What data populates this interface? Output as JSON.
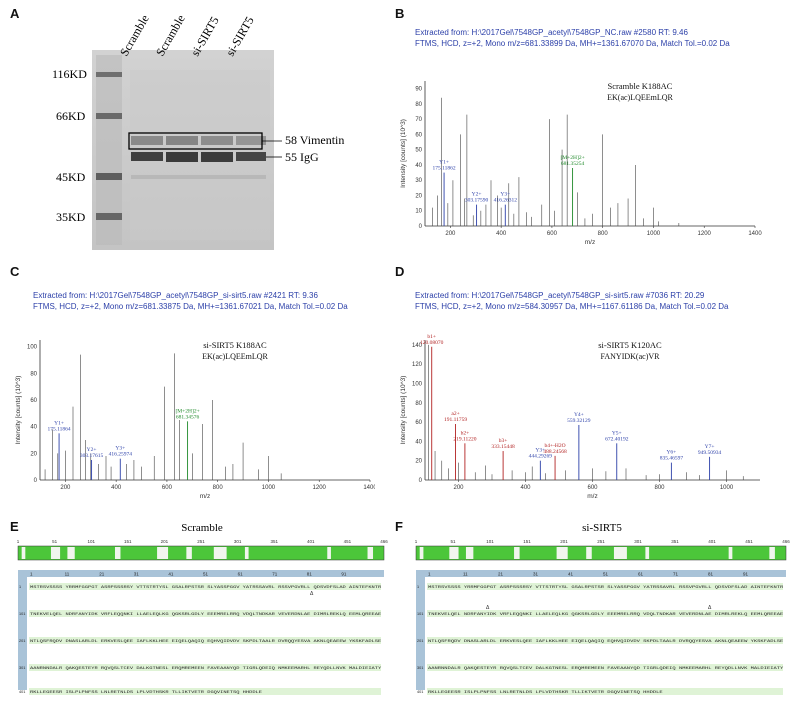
{
  "panels": {
    "A": "A",
    "B": "B",
    "C": "C",
    "D": "D",
    "E": "E",
    "F": "F"
  },
  "gel": {
    "lanes": [
      "Scramble",
      "Scramble",
      "si-SIRT5",
      "si-SIRT5"
    ],
    "markers": [
      "116KD",
      "66KD",
      "45KD",
      "35KD"
    ],
    "band_labels": [
      "58 Vimentin",
      "55 IgG"
    ]
  },
  "spectra": [
    {
      "id": "B",
      "header1": "Extracted from: H:\\2017Gel\\7548GP_acetyl\\7548GP_NC.raw   #2580   RT: 9.46",
      "header2": "FTMS, HCD, z=+2, Mono m/z=681.33899 Da, MH+=1361.67070 Da, Match Tol.=0.02 Da",
      "title": "Scramble K188AC",
      "peptide": "EK(ac)LQEEmLQR",
      "ylabel": "Intensity [counts] (10^3)",
      "xlabel": "m/z",
      "yticks": [
        "90",
        "80",
        "70",
        "60",
        "50",
        "40",
        "30",
        "20",
        "10",
        "0"
      ],
      "xticks": [
        "200",
        "400",
        "600",
        "800",
        "1000",
        "1200",
        "1400"
      ],
      "annotations": [
        {
          "ion": "Y1+",
          "mz": "175.11862",
          "color": "#2b3fa8"
        },
        {
          "ion": "Y2+",
          "mz": "303.17590",
          "color": "#2b3fa8"
        },
        {
          "ion": "Y3+",
          "mz": "416.26312",
          "color": "#2b3fa8"
        },
        {
          "ion": "[M+2H]2+",
          "mz": "681.35254",
          "color": "#1f8a2a"
        }
      ]
    },
    {
      "id": "C",
      "header1": "Extracted from: H:\\2017Gel\\7548GP_acetyl\\7548GP_si-sirt5.raw   #2421   RT: 9.36",
      "header2": "FTMS, HCD, z=+2, Mono m/z=681.33875 Da, MH+=1361.67021 Da, Match Tol.=0.02 Da",
      "title": "si-SIRT5 K188AC",
      "peptide": "EK(ac)LQEEmLQR",
      "ylabel": "Intensity [counts] (10^3)",
      "xlabel": "m/z",
      "yticks": [
        "100",
        "80",
        "60",
        "40",
        "20",
        "0"
      ],
      "xticks": [
        "200",
        "400",
        "600",
        "800",
        "1000",
        "1200",
        "1400"
      ],
      "annotations": [
        {
          "ion": "Y1+",
          "mz": "175.11864",
          "color": "#2b3fa8"
        },
        {
          "ion": "Y2+",
          "mz": "303.17615",
          "color": "#2b3fa8"
        },
        {
          "ion": "Y3+",
          "mz": "416.25974",
          "color": "#2b3fa8"
        },
        {
          "ion": "[M+2H]2+",
          "mz": "681.34576",
          "color": "#1f8a2a"
        }
      ]
    },
    {
      "id": "D",
      "header1": "Extracted from: H:\\2017Gel\\7548GP_acetyl\\7548GP_si-sirt5.raw   #7036   RT: 20.29",
      "header2": "FTMS, HCD, z=+2, Mono m/z=584.30957 Da, MH+=1167.61186 Da, Match Tol.=0.02 Da",
      "title": "si-SIRT5 K120AC",
      "peptide": "FANYIDK(ac)VR",
      "ylabel": "Intensity [counts] (10^3)",
      "xlabel": "m/z",
      "yticks": [
        "140",
        "120",
        "100",
        "80",
        "60",
        "40",
        "20",
        "0"
      ],
      "xticks": [
        "200",
        "400",
        "600",
        "800",
        "1000"
      ],
      "annotations": [
        {
          "ion": "b1+",
          "mz": "120.08070",
          "color": "#b22222"
        },
        {
          "ion": "a2+",
          "mz": "191.11759",
          "color": "#b22222"
        },
        {
          "ion": "b2+",
          "mz": "219.11220",
          "color": "#b22222"
        },
        {
          "ion": "b3+",
          "mz": "333.15448",
          "color": "#b22222"
        },
        {
          "ion": "Y3+",
          "mz": "444.29269",
          "color": "#2b3fa8"
        },
        {
          "ion": "b4+-H2O",
          "mz": "488.24568",
          "color": "#b22222"
        },
        {
          "ion": "Y4+",
          "mz": "559.32129",
          "color": "#2b3fa8"
        },
        {
          "ion": "Y5+",
          "mz": "672.40192",
          "color": "#2b3fa8"
        },
        {
          "ion": "Y6+",
          "mz": "835.46597",
          "color": "#2b3fa8"
        },
        {
          "ion": "Y7+",
          "mz": "949.50934",
          "color": "#2b3fa8"
        }
      ]
    }
  ],
  "coverage": [
    {
      "id": "E",
      "title": "Scramble",
      "ruler": [
        "1",
        "51",
        "101",
        "151",
        "201",
        "251",
        "301",
        "351",
        "401",
        "451",
        "466"
      ],
      "index": [
        "1",
        "11",
        "21",
        "31",
        "41",
        "51",
        "61",
        "71",
        "81",
        "91"
      ],
      "row_nums": [
        "1",
        "101",
        "201",
        "301",
        "401"
      ],
      "seq": [
        "MSTRSVSSSS YRRMFGGPGT ASRPSSSRSY VTTSTRTYSL GSALRPSTSR SLYASSPGGV YATRSSAVRL RSSVPGVRLL QDSVDFSLAD AINTEFKNTR",
        "TNEKVELQEL NDRFANYIDK VRFLEQQNKI LLAELEQLKG QGKSRLGDLY EEEMRELRRQ VDQLTNDKAR VEVERDNLAE DIMRLREKLQ EEMLQREEAE",
        "NTLQSFRQDV DNASLARLDL ERKVESLQEE IAFLKKLHEE EIQELQAQIQ EQHVQIDVDV SKPDLTAALR DVRQQYESVA AKNLQEAEEW YKSKFADLSE",
        "AANRNNDALR QAKQESTEYR RQVQSLTCEV DALKGTNESL ERQMREMEEN FAVEAANYQD TIGRLQDEIQ NMKEEMARHL REYQDLLNVK MALDIEIATY",
        "RKLLEGEESR ISLPLPNFSS LNLRETNLDS LPLVDTHSKR TLLIKTVETR DGQVINETSQ HHDDLE"
      ],
      "marks": [
        "Δ",
        ""
      ]
    },
    {
      "id": "F",
      "title": "si-SIRT5",
      "ruler": [
        "1",
        "51",
        "101",
        "151",
        "201",
        "251",
        "301",
        "351",
        "401",
        "451",
        "466"
      ],
      "index": [
        "1",
        "11",
        "21",
        "31",
        "41",
        "51",
        "61",
        "71",
        "81",
        "91"
      ],
      "row_nums": [
        "1",
        "101",
        "201",
        "301",
        "401"
      ],
      "seq": [
        "MSTRSVSSSS YRRMFGGPGT ASRPSSSRSY VTTSTRTYSL GSALRPSTSR SLYASSPGGV YATRSSAVRL RSSVPGVRLL QDSVDFSLAD AINTEFKNTR",
        "TNEKVELQEL NDRFANYIDK VRFLEQQNKI LLAELEQLKG QGKSRLGDLY EEEMRELRRQ VDQLTNDKAR VEVERDNLAE DIMRLREKLQ EEMLQREEAE",
        "NTLQSFRQDV DNASLARLDL ERKVESLQEE IAFLKKLHEE EIQELQAQIQ EQHVQIDVDV SKPDLTAALR DVRQQYESVA AKNLQEAEEW YKSKFADLSE",
        "AANRNNDALR QAKQESTEYR RQVQSLTCEV DALKGTNESL ERQMREMEEN FAVEAANYQD TIGRLQDEIQ NMKEEMARHL REYQDLLNVK MALDIEIATY",
        "RKLLEGEESR ISLPLPNFSS LNLRETNLDS LPLVDTHSKR TLLIKTVETR DGQVINETSQ HHDDLE"
      ],
      "marks": [
        "Δ",
        "Δ"
      ]
    }
  ],
  "colors": {
    "header_blue": "#2b3fa8",
    "peak_green": "#1f8a2a",
    "peak_red": "#b22222",
    "coverage_green": "#4cc63a"
  }
}
